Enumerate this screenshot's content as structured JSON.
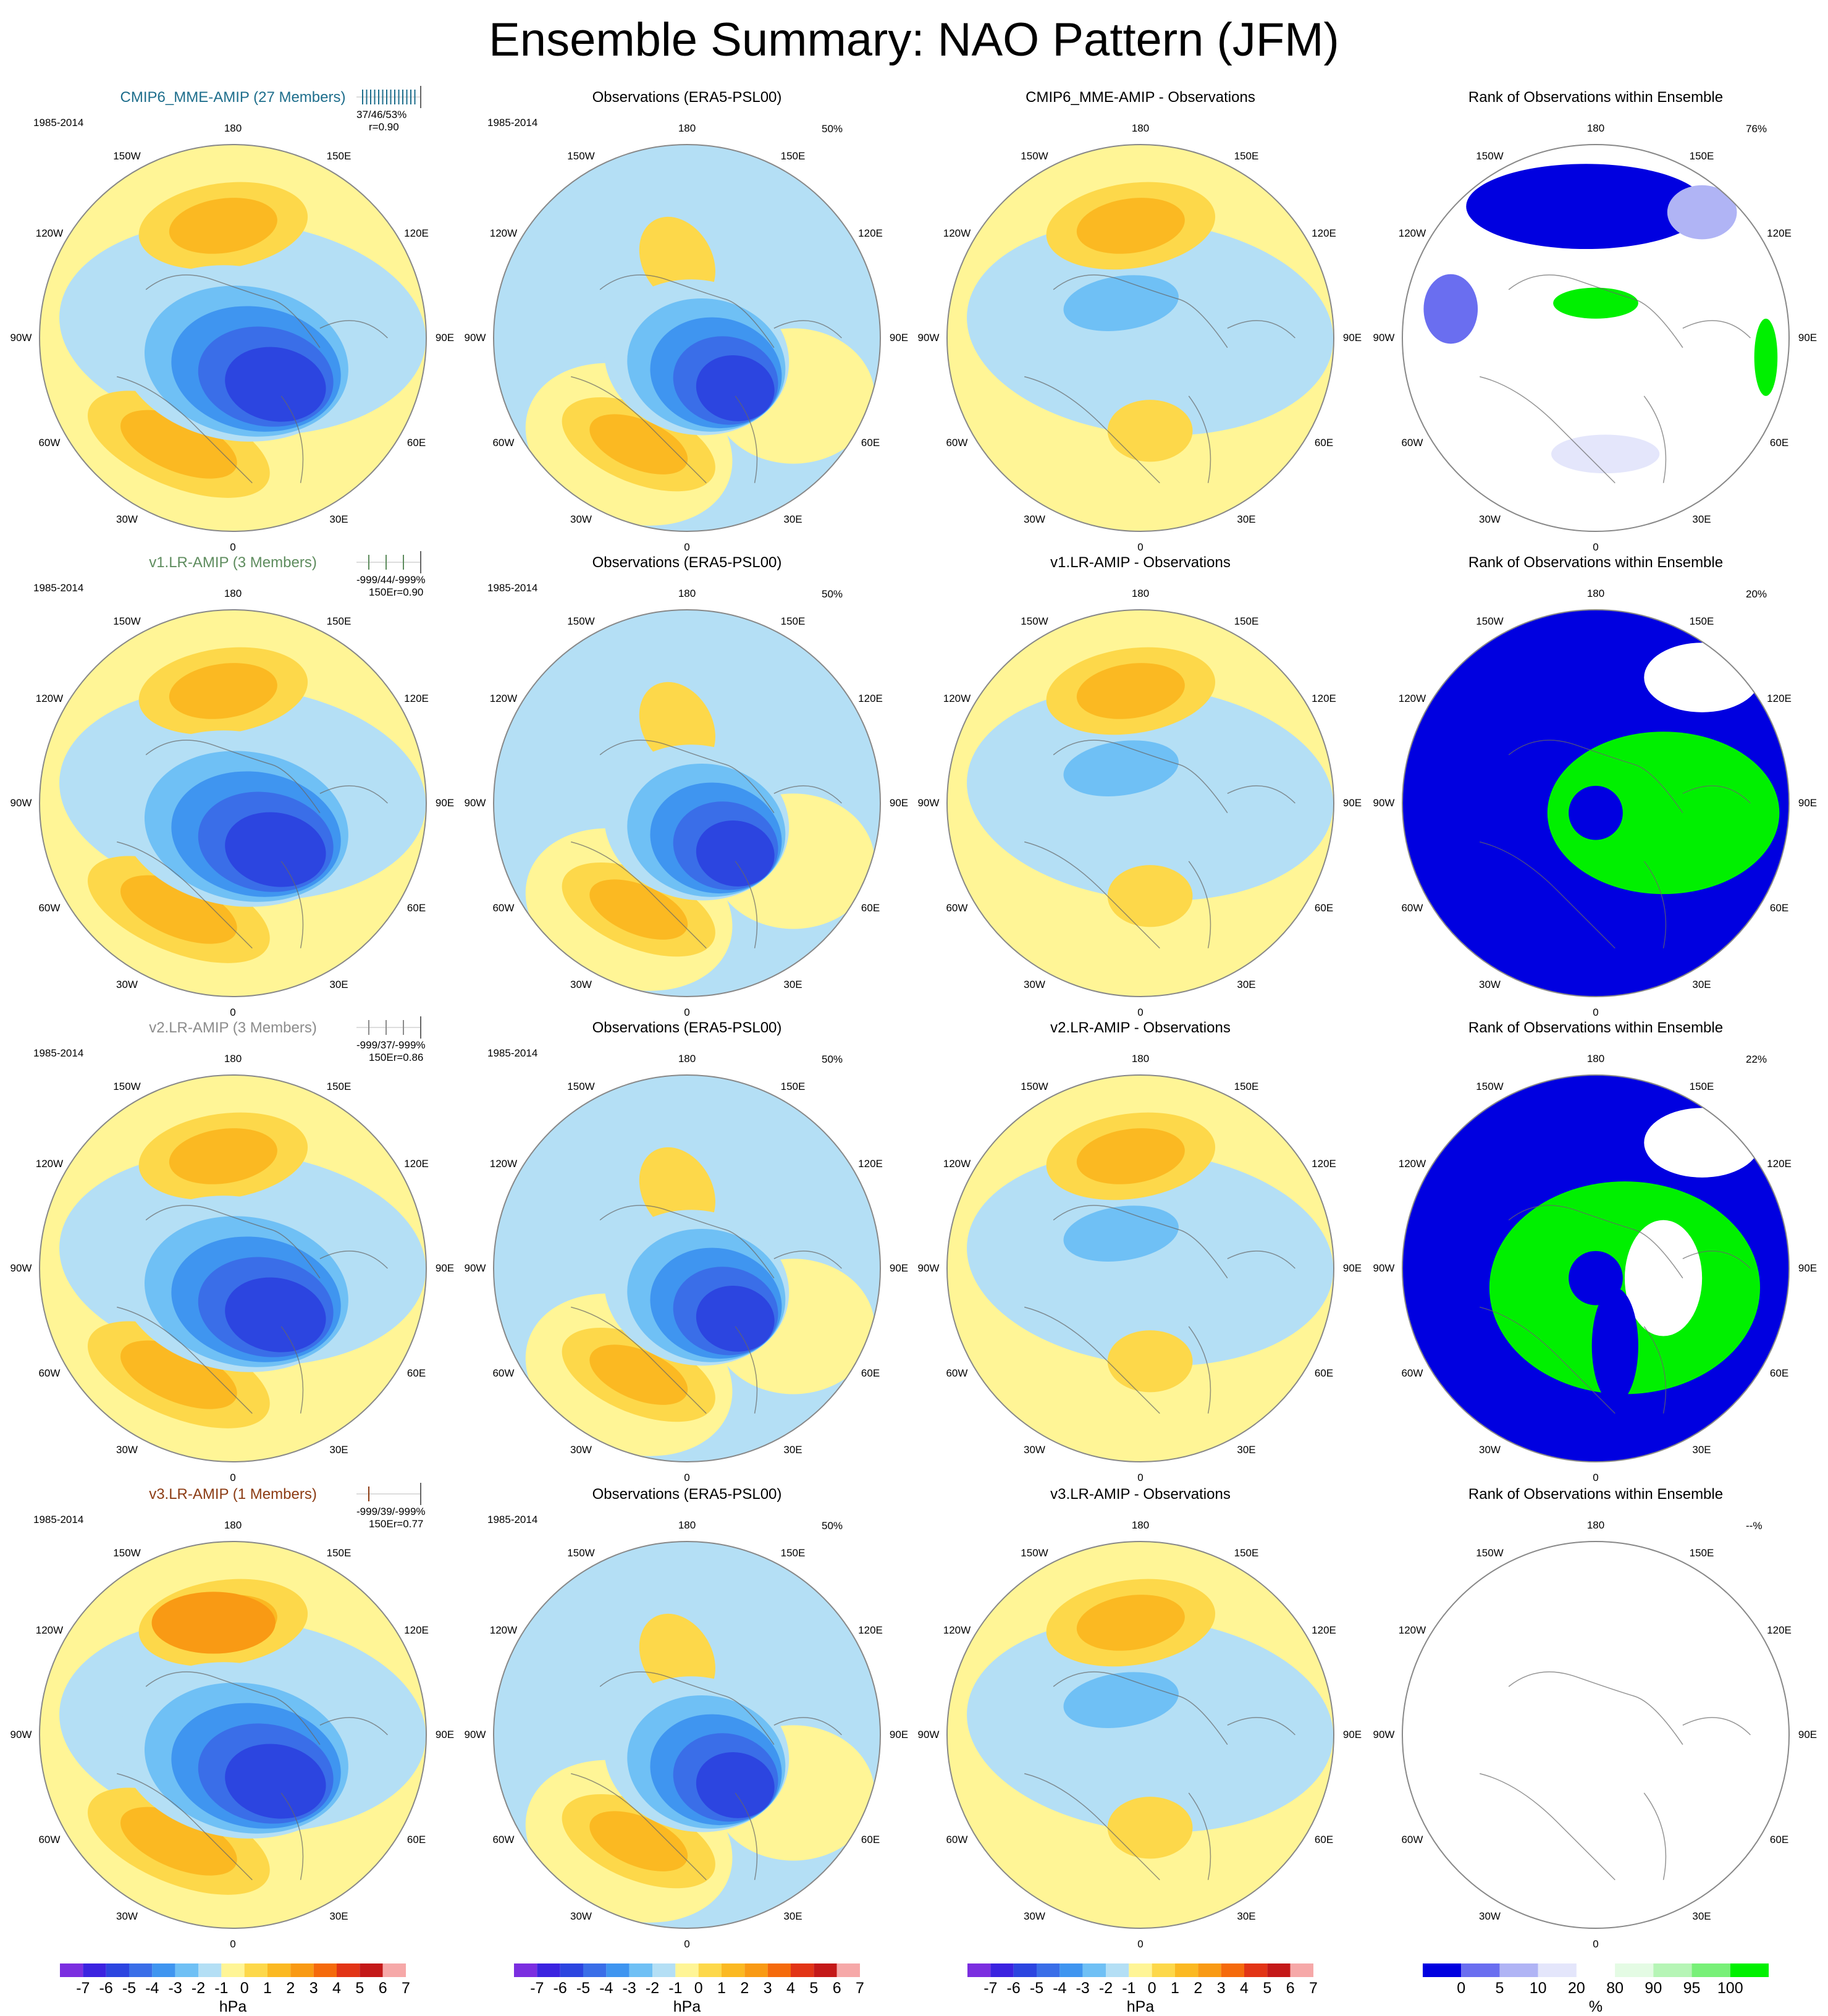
{
  "title": "Ensemble Summary: NAO Pattern (JFM)",
  "period": "1985-2014",
  "longitude_labels": [
    "180",
    "150E",
    "120E",
    "90E",
    "60E",
    "30E",
    "0",
    "30W",
    "60W",
    "90W",
    "120W",
    "150W"
  ],
  "colors": {
    "psl_levels": [
      "#7b2ee0",
      "#3b23e0",
      "#2c45e0",
      "#3a6ee8",
      "#3f95f0",
      "#6fc0f5",
      "#b4dff5",
      "#fff596",
      "#fdd84a",
      "#fbb922",
      "#f99a14",
      "#f56a0c",
      "#e23416",
      "#c41818",
      "#f6a8a8"
    ],
    "rank_levels": [
      "#0000e0",
      "#6a6ef0",
      "#b0b4f5",
      "#e4e6fb",
      "#ffffff",
      "#e4fbe4",
      "#b6f5b6",
      "#78f078",
      "#00f000"
    ]
  },
  "rows": [
    {
      "model_title": "CMIP6_MME-AMIP (27 Members)",
      "model_color": "#1e6e8c",
      "stats": "37/46/53%",
      "corr": "r=0.90",
      "obs_title": "Observations (ERA5-PSL00)",
      "obs_pct": "50%",
      "diff_title": "CMIP6_MME-AMIP - Observations",
      "rank_title": "Rank of Observations within Ensemble",
      "rank_pct": "76%"
    },
    {
      "model_title": "v1.LR-AMIP (3 Members)",
      "model_color": "#5e8c5e",
      "stats": "-999/44/-999%",
      "corr": "150Er=0.90",
      "obs_title": "Observations (ERA5-PSL00)",
      "obs_pct": "50%",
      "diff_title": "v1.LR-AMIP - Observations",
      "rank_title": "Rank of Observations within Ensemble",
      "rank_pct": "20%"
    },
    {
      "model_title": "v2.LR-AMIP (3 Members)",
      "model_color": "#8c8c8c",
      "stats": "-999/37/-999%",
      "corr": "150Er=0.86",
      "obs_title": "Observations (ERA5-PSL00)",
      "obs_pct": "50%",
      "diff_title": "v2.LR-AMIP - Observations",
      "rank_title": "Rank of Observations within Ensemble",
      "rank_pct": "22%"
    },
    {
      "model_title": "v3.LR-AMIP (1 Members)",
      "model_color": "#8c3c14",
      "stats": "-999/39/-999%",
      "corr": "150Er=0.77",
      "obs_title": "Observations (ERA5-PSL00)",
      "obs_pct": "50%",
      "diff_title": "v3.LR-AMIP - Observations",
      "rank_title": "Rank of Observations within Ensemble",
      "rank_pct": "--%"
    }
  ],
  "colorbars": {
    "psl_ticks": [
      "-7",
      "-6",
      "-5",
      "-4",
      "-3",
      "-2",
      "-1",
      "0",
      "1",
      "2",
      "3",
      "4",
      "5",
      "6",
      "7"
    ],
    "psl_unit": "hPa",
    "rank_ticks": [
      "0",
      "5",
      "10",
      "20",
      "80",
      "90",
      "95",
      "100"
    ],
    "rank_unit": "%"
  }
}
